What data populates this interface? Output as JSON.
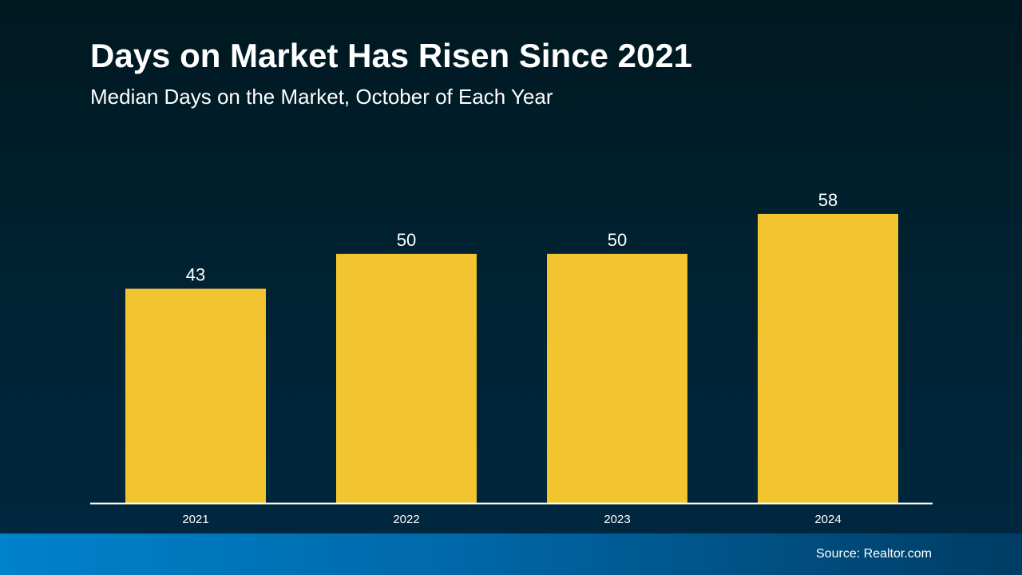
{
  "chart_data": {
    "type": "bar",
    "title": "Days on Market Has Risen Since 2021",
    "subtitle": "Median Days on the Market, October of Each Year",
    "categories": [
      "2021",
      "2022",
      "2023",
      "2024"
    ],
    "values": [
      43,
      50,
      50,
      58
    ],
    "value_labels": [
      "43",
      "50",
      "50",
      "58"
    ],
    "xlabel": "",
    "ylabel": "",
    "ylim": [
      0,
      70
    ],
    "grid": false,
    "bar_color": "#F2C530"
  },
  "footer": {
    "source": "Source: Realtor.com"
  }
}
